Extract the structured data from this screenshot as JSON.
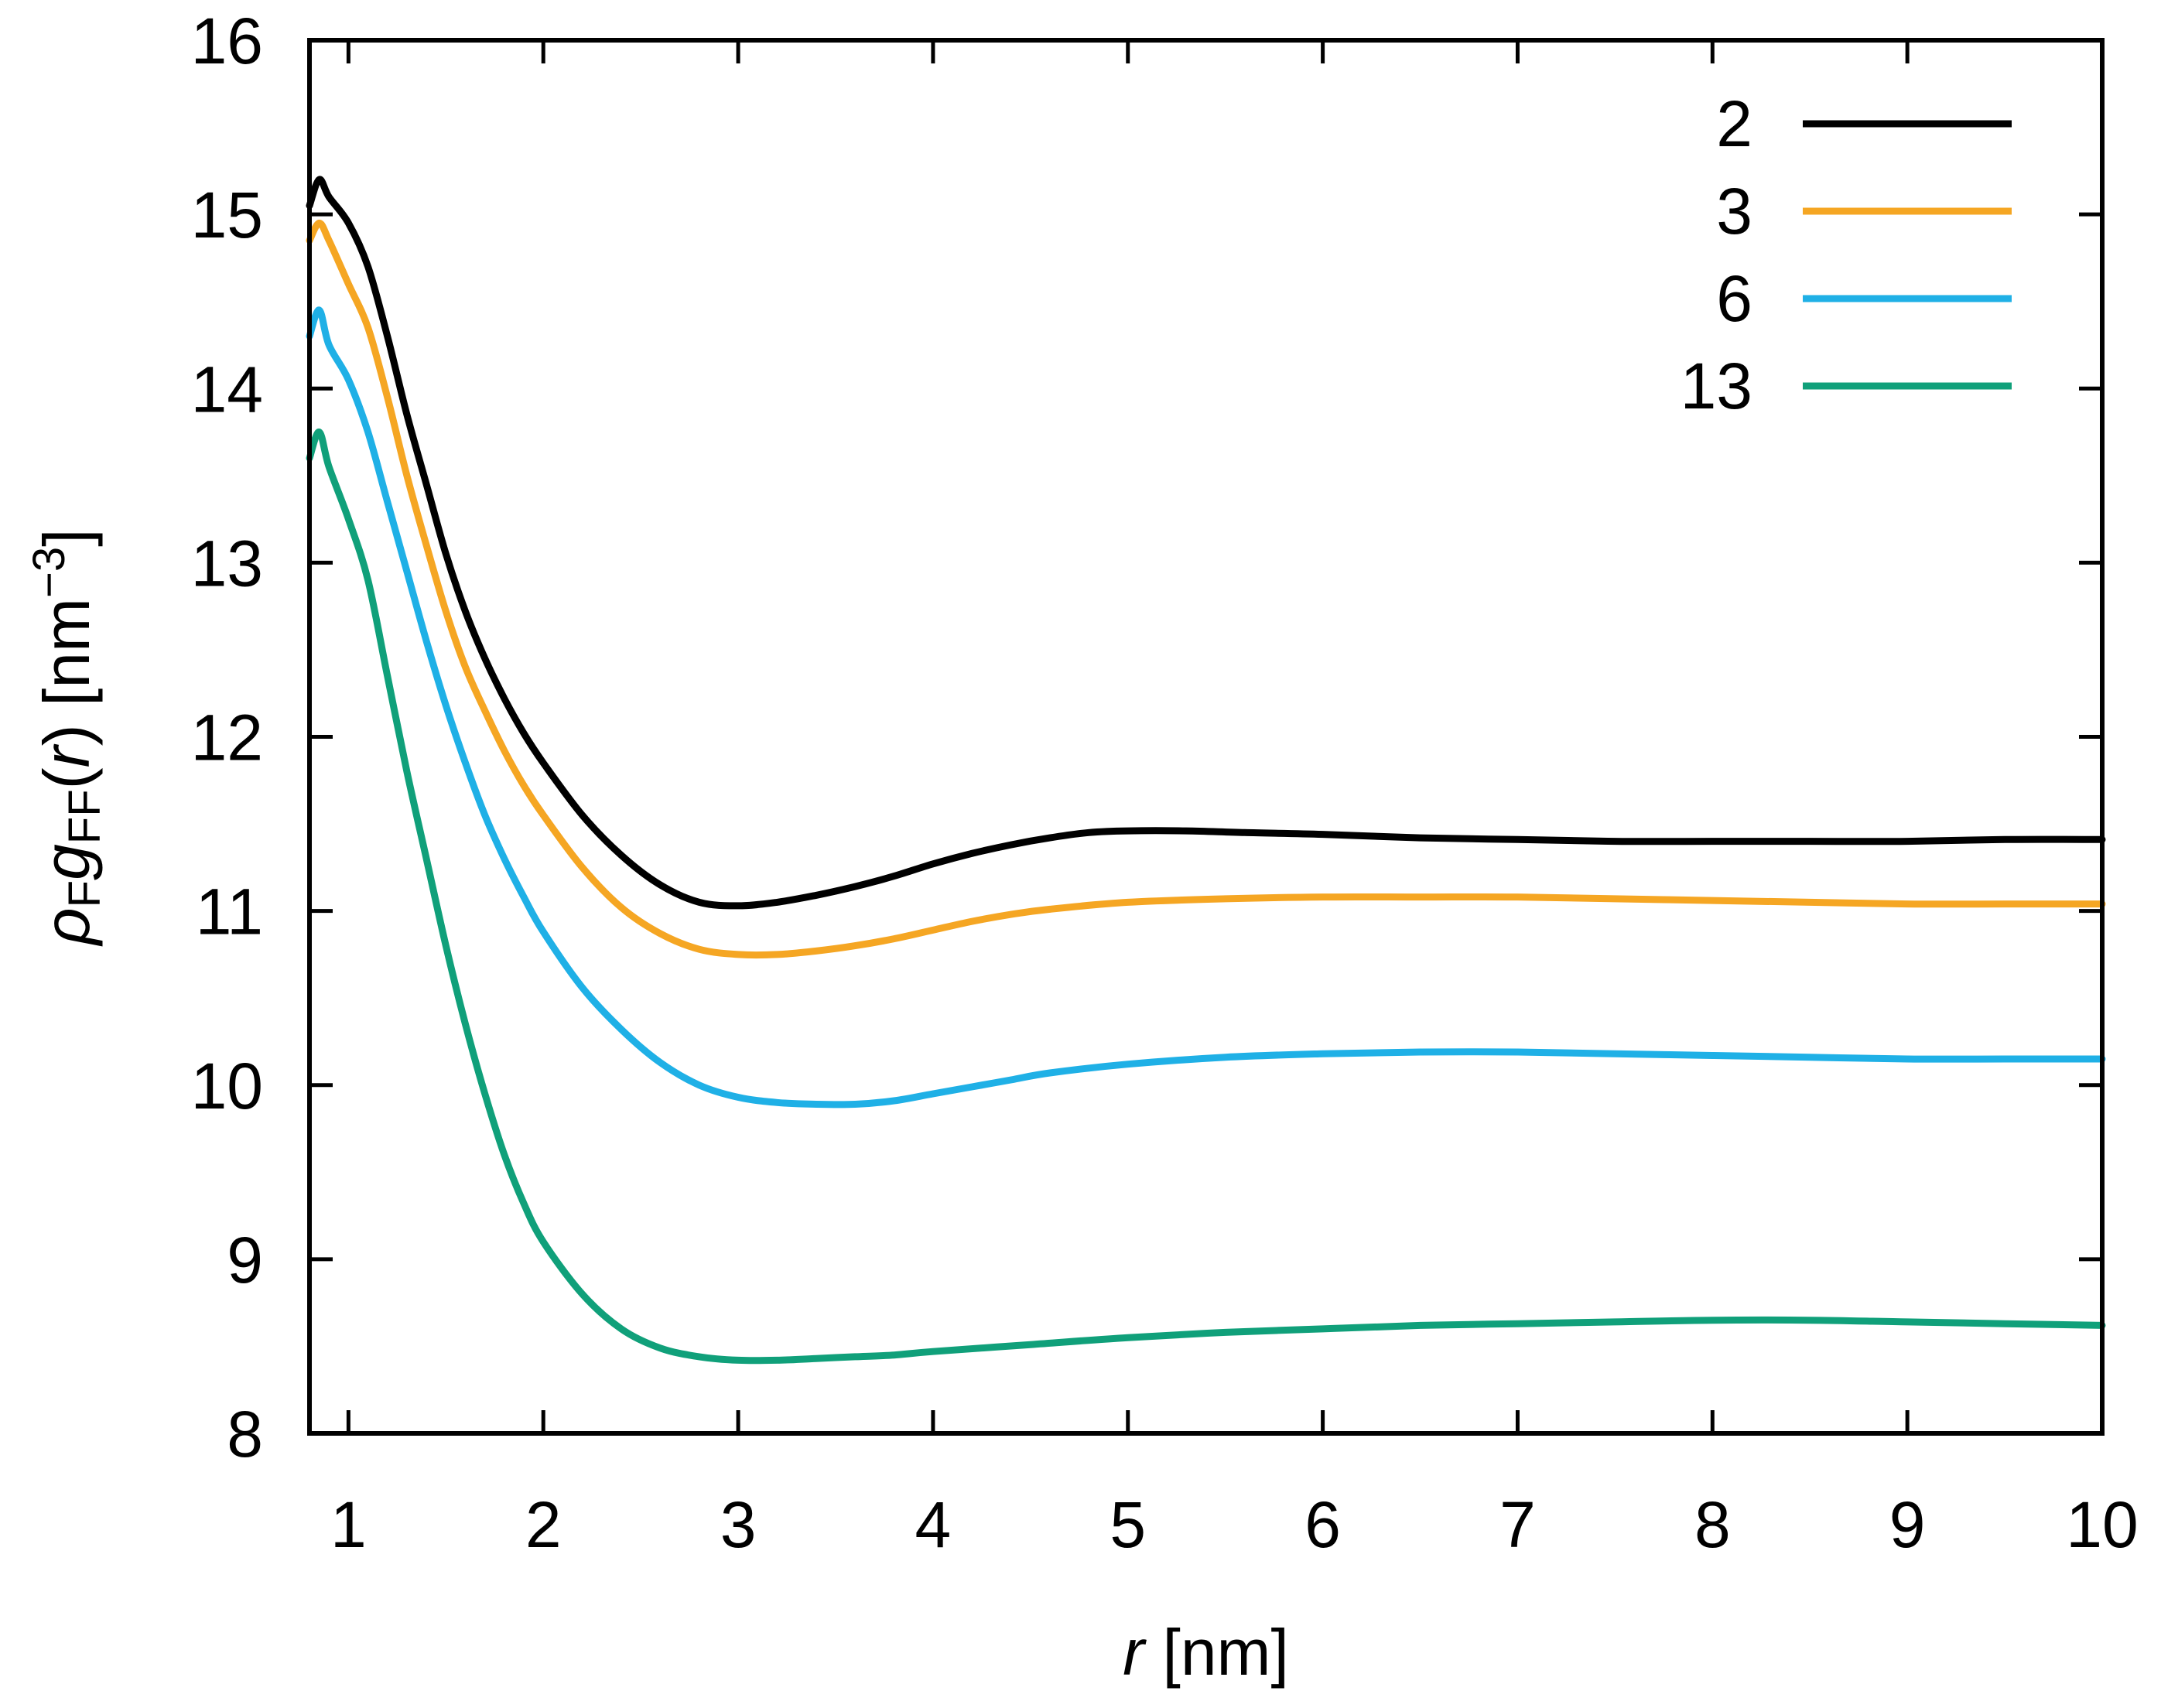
{
  "chart_data": {
    "type": "line",
    "title": "",
    "xlabel_var": "r",
    "xlabel_unit": " [nm]",
    "ylabel": {
      "rho": "ρ",
      "sub_F": "F",
      "g": "g",
      "sub_FF": "FF",
      "arg_open": "(",
      "arg_var": "r",
      "arg_close": ")",
      "unit_open": " [nm",
      "unit_exp": "−3",
      "unit_close": "]"
    },
    "xlim": [
      0.8,
      10
    ],
    "ylim": [
      8,
      16
    ],
    "x_ticks": [
      1,
      2,
      3,
      4,
      5,
      6,
      7,
      8,
      9,
      10
    ],
    "y_ticks": [
      8,
      9,
      10,
      11,
      12,
      13,
      14,
      15,
      16
    ],
    "x_tick_labels": [
      "1",
      "2",
      "3",
      "4",
      "5",
      "6",
      "7",
      "8",
      "9",
      "10"
    ],
    "y_tick_labels": [
      "8",
      "9",
      "10",
      "11",
      "12",
      "13",
      "14",
      "15",
      "16"
    ],
    "grid": false,
    "legend_position": "top-right",
    "series": [
      {
        "name": "2",
        "color": "#000000",
        "points": [
          [
            0.8,
            15.05
          ],
          [
            0.85,
            15.2
          ],
          [
            0.9,
            15.1
          ],
          [
            1.0,
            14.95
          ],
          [
            1.1,
            14.7
          ],
          [
            1.2,
            14.3
          ],
          [
            1.3,
            13.85
          ],
          [
            1.4,
            13.45
          ],
          [
            1.5,
            13.05
          ],
          [
            1.6,
            12.72
          ],
          [
            1.7,
            12.45
          ],
          [
            1.8,
            12.22
          ],
          [
            1.9,
            12.02
          ],
          [
            2.0,
            11.85
          ],
          [
            2.2,
            11.55
          ],
          [
            2.4,
            11.32
          ],
          [
            2.6,
            11.15
          ],
          [
            2.8,
            11.05
          ],
          [
            3.0,
            11.03
          ],
          [
            3.2,
            11.05
          ],
          [
            3.4,
            11.09
          ],
          [
            3.6,
            11.14
          ],
          [
            3.8,
            11.2
          ],
          [
            4.0,
            11.27
          ],
          [
            4.2,
            11.33
          ],
          [
            4.4,
            11.38
          ],
          [
            4.6,
            11.42
          ],
          [
            4.8,
            11.45
          ],
          [
            5.0,
            11.46
          ],
          [
            5.3,
            11.46
          ],
          [
            5.6,
            11.45
          ],
          [
            6.0,
            11.44
          ],
          [
            6.5,
            11.42
          ],
          [
            7.0,
            11.41
          ],
          [
            7.5,
            11.4
          ],
          [
            8.0,
            11.4
          ],
          [
            8.5,
            11.4
          ],
          [
            9.0,
            11.4
          ],
          [
            9.5,
            11.41
          ],
          [
            10.0,
            11.41
          ]
        ]
      },
      {
        "name": "3",
        "color": "#F5A623",
        "points": [
          [
            0.8,
            14.85
          ],
          [
            0.85,
            14.95
          ],
          [
            0.9,
            14.85
          ],
          [
            1.0,
            14.6
          ],
          [
            1.1,
            14.35
          ],
          [
            1.2,
            13.95
          ],
          [
            1.3,
            13.5
          ],
          [
            1.4,
            13.1
          ],
          [
            1.5,
            12.72
          ],
          [
            1.6,
            12.4
          ],
          [
            1.7,
            12.15
          ],
          [
            1.8,
            11.92
          ],
          [
            1.9,
            11.72
          ],
          [
            2.0,
            11.55
          ],
          [
            2.2,
            11.25
          ],
          [
            2.4,
            11.02
          ],
          [
            2.6,
            10.87
          ],
          [
            2.8,
            10.78
          ],
          [
            3.0,
            10.75
          ],
          [
            3.2,
            10.75
          ],
          [
            3.4,
            10.77
          ],
          [
            3.6,
            10.8
          ],
          [
            3.8,
            10.84
          ],
          [
            4.0,
            10.89
          ],
          [
            4.2,
            10.94
          ],
          [
            4.4,
            10.98
          ],
          [
            4.6,
            11.01
          ],
          [
            5.0,
            11.05
          ],
          [
            5.5,
            11.07
          ],
          [
            6.0,
            11.08
          ],
          [
            6.5,
            11.08
          ],
          [
            7.0,
            11.08
          ],
          [
            7.5,
            11.07
          ],
          [
            8.0,
            11.06
          ],
          [
            8.5,
            11.05
          ],
          [
            9.0,
            11.04
          ],
          [
            9.5,
            11.04
          ],
          [
            10.0,
            11.04
          ]
        ]
      },
      {
        "name": "6",
        "color": "#1FB0E6",
        "points": [
          [
            0.8,
            14.3
          ],
          [
            0.85,
            14.45
          ],
          [
            0.9,
            14.25
          ],
          [
            1.0,
            14.05
          ],
          [
            1.1,
            13.75
          ],
          [
            1.2,
            13.35
          ],
          [
            1.3,
            12.95
          ],
          [
            1.4,
            12.55
          ],
          [
            1.5,
            12.18
          ],
          [
            1.6,
            11.85
          ],
          [
            1.7,
            11.55
          ],
          [
            1.8,
            11.3
          ],
          [
            1.9,
            11.08
          ],
          [
            2.0,
            10.88
          ],
          [
            2.2,
            10.56
          ],
          [
            2.4,
            10.32
          ],
          [
            2.6,
            10.13
          ],
          [
            2.8,
            10.0
          ],
          [
            3.0,
            9.93
          ],
          [
            3.2,
            9.9
          ],
          [
            3.4,
            9.89
          ],
          [
            3.6,
            9.89
          ],
          [
            3.8,
            9.91
          ],
          [
            4.0,
            9.95
          ],
          [
            4.2,
            9.99
          ],
          [
            4.4,
            10.03
          ],
          [
            4.6,
            10.07
          ],
          [
            5.0,
            10.12
          ],
          [
            5.5,
            10.16
          ],
          [
            6.0,
            10.18
          ],
          [
            6.5,
            10.19
          ],
          [
            7.0,
            10.19
          ],
          [
            7.5,
            10.18
          ],
          [
            8.0,
            10.17
          ],
          [
            8.5,
            10.16
          ],
          [
            9.0,
            10.15
          ],
          [
            9.5,
            10.15
          ],
          [
            10.0,
            10.15
          ]
        ]
      },
      {
        "name": "13",
        "color": "#10A07A",
        "points": [
          [
            0.8,
            13.6
          ],
          [
            0.85,
            13.75
          ],
          [
            0.9,
            13.55
          ],
          [
            1.0,
            13.25
          ],
          [
            1.1,
            12.9
          ],
          [
            1.2,
            12.35
          ],
          [
            1.3,
            11.8
          ],
          [
            1.4,
            11.3
          ],
          [
            1.5,
            10.8
          ],
          [
            1.6,
            10.35
          ],
          [
            1.7,
            9.95
          ],
          [
            1.8,
            9.6
          ],
          [
            1.9,
            9.32
          ],
          [
            2.0,
            9.1
          ],
          [
            2.2,
            8.8
          ],
          [
            2.4,
            8.6
          ],
          [
            2.6,
            8.49
          ],
          [
            2.8,
            8.44
          ],
          [
            3.0,
            8.42
          ],
          [
            3.2,
            8.42
          ],
          [
            3.4,
            8.43
          ],
          [
            3.6,
            8.44
          ],
          [
            3.8,
            8.45
          ],
          [
            4.0,
            8.47
          ],
          [
            4.5,
            8.51
          ],
          [
            5.0,
            8.55
          ],
          [
            5.5,
            8.58
          ],
          [
            6.0,
            8.6
          ],
          [
            6.5,
            8.62
          ],
          [
            7.0,
            8.63
          ],
          [
            7.5,
            8.64
          ],
          [
            8.0,
            8.65
          ],
          [
            8.5,
            8.65
          ],
          [
            9.0,
            8.64
          ],
          [
            9.5,
            8.63
          ],
          [
            10.0,
            8.62
          ]
        ]
      }
    ]
  }
}
